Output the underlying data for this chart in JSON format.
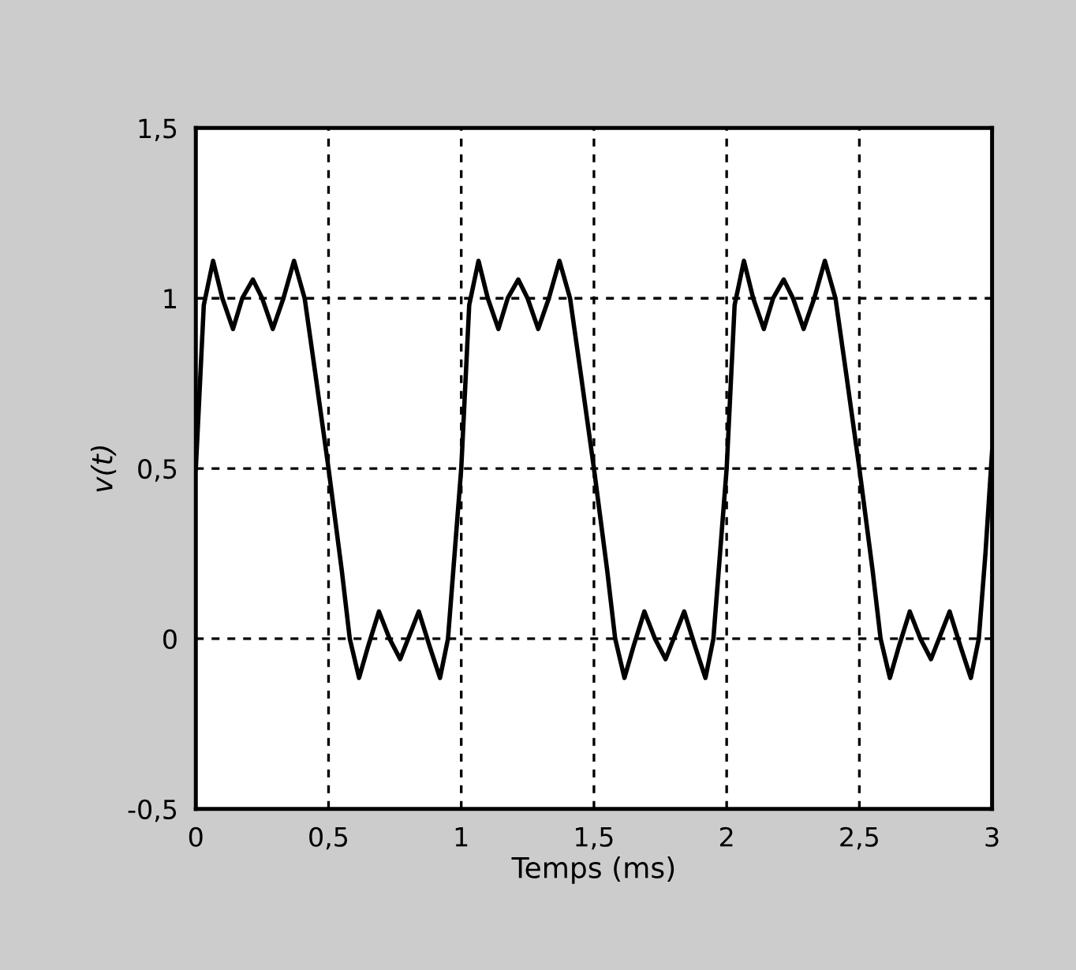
{
  "chart_data": {
    "type": "line",
    "xlabel": "Temps (ms)",
    "ylabel": "v(t)",
    "x": [
      0,
      0.03,
      0.065,
      0.1,
      0.14,
      0.175,
      0.215,
      0.25,
      0.29,
      0.33,
      0.37,
      0.41,
      0.45,
      0.5,
      0.55,
      0.58,
      0.615,
      0.65,
      0.69,
      0.73,
      0.77,
      0.8,
      0.84,
      0.88,
      0.92,
      0.95,
      0.975,
      1,
      1.03,
      1.065,
      1.1,
      1.14,
      1.175,
      1.215,
      1.25,
      1.29,
      1.33,
      1.37,
      1.41,
      1.45,
      1.5,
      1.55,
      1.58,
      1.615,
      1.65,
      1.69,
      1.73,
      1.77,
      1.8,
      1.84,
      1.88,
      1.92,
      1.95,
      1.975,
      2,
      2.03,
      2.065,
      2.1,
      2.14,
      2.175,
      2.215,
      2.25,
      2.29,
      2.33,
      2.37,
      2.41,
      2.45,
      2.5,
      2.55,
      2.58,
      2.615,
      2.65,
      2.69,
      2.73,
      2.77,
      2.8,
      2.84,
      2.88,
      2.92,
      2.95,
      2.975,
      3
    ],
    "series": [
      {
        "color": "#000000",
        "values": [
          0.5,
          0.98,
          1.11,
          1.0,
          0.91,
          1.0,
          1.055,
          1.0,
          0.91,
          1.0,
          1.11,
          1.0,
          0.78,
          0.5,
          0.2,
          0.0,
          -0.115,
          -0.02,
          0.08,
          0.0,
          -0.06,
          0.0,
          0.08,
          -0.02,
          -0.115,
          0.0,
          0.25,
          0.5,
          0.98,
          1.11,
          1.0,
          0.91,
          1.0,
          1.055,
          1.0,
          0.91,
          1.0,
          1.11,
          1.0,
          0.78,
          0.5,
          0.2,
          0.0,
          -0.115,
          -0.02,
          0.08,
          0.0,
          -0.06,
          0.0,
          0.08,
          -0.02,
          -0.115,
          0.0,
          0.25,
          0.5,
          0.98,
          1.11,
          1.0,
          0.91,
          1.0,
          1.055,
          1.0,
          0.91,
          1.0,
          1.11,
          1.0,
          0.78,
          0.5,
          0.2,
          0.0,
          -0.115,
          -0.02,
          0.08,
          0.0,
          -0.06,
          0.0,
          0.08,
          -0.02,
          -0.115,
          0.0,
          0.25,
          0.55
        ]
      }
    ],
    "xlim": [
      0,
      3
    ],
    "ylim": [
      -0.5,
      1.5
    ],
    "xticks": [
      0,
      {
        "value": 0.5,
        "label": "0,5"
      },
      1,
      {
        "value": 1.5,
        "label": "1,5"
      },
      2,
      {
        "value": 2.5,
        "label": "2,5"
      },
      3
    ],
    "yticks": [
      {
        "value": -0.5,
        "label": "-0,5"
      },
      0,
      {
        "value": 0.5,
        "label": "0,5"
      },
      1,
      {
        "value": 1.5,
        "label": "1,5"
      }
    ],
    "grid": true,
    "line_style": "solid",
    "marker": "none"
  }
}
